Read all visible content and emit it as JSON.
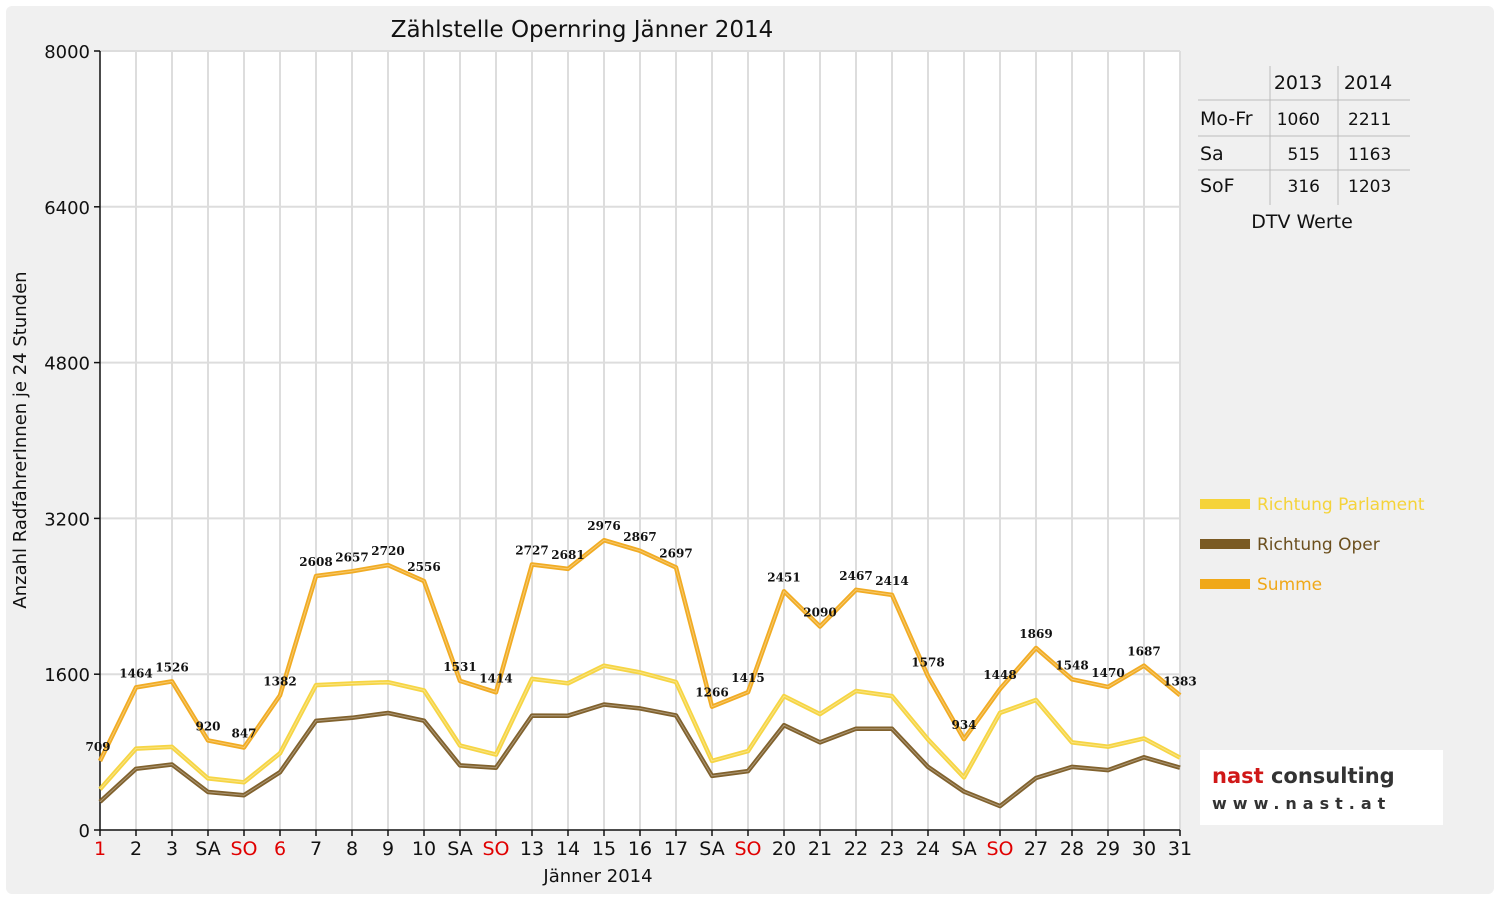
{
  "chart_data": {
    "type": "line",
    "title": "Zählstelle Opernring Jänner 2014",
    "xlabel": "Jänner 2014",
    "ylabel": "Anzahl RadfahrerInnen je 24 Stunden",
    "ylim": [
      0,
      8000
    ],
    "yticks": [
      "0",
      "1600",
      "3200",
      "4800",
      "6400",
      "8000"
    ],
    "grid": true,
    "legend_position": "right",
    "categories": [
      "1",
      "2",
      "3",
      "SA",
      "SO",
      "6",
      "7",
      "8",
      "9",
      "10",
      "SA",
      "SO",
      "13",
      "14",
      "15",
      "16",
      "17",
      "SA",
      "SO",
      "20",
      "21",
      "22",
      "23",
      "24",
      "SA",
      "SO",
      "27",
      "28",
      "29",
      "30",
      "31"
    ],
    "red_categories": [
      0,
      4,
      5,
      11,
      18,
      25
    ],
    "series": [
      {
        "name": "Richtung Parlament",
        "color": "#f5d33a",
        "values": [
          419,
          836,
          853,
          530,
          490,
          788,
          1488,
          1505,
          1518,
          1434,
          868,
          774,
          1552,
          1507,
          1687,
          1618,
          1520,
          710,
          810,
          1375,
          1190,
          1427,
          1375,
          930,
          540,
          1203,
          1335,
          900,
          855,
          940,
          743
        ]
      },
      {
        "name": "Richtung Oper",
        "color": "#7a5a23",
        "values": [
          290,
          628,
          673,
          390,
          357,
          594,
          1120,
          1152,
          1202,
          1122,
          663,
          640,
          1175,
          1174,
          1289,
          1249,
          1177,
          556,
          605,
          1076,
          900,
          1040,
          1039,
          648,
          394,
          245,
          534,
          648,
          615,
          747,
          640
        ]
      },
      {
        "name": "Summe",
        "color": "#f0a818",
        "values": [
          709,
          1464,
          1526,
          920,
          847,
          1382,
          2608,
          2657,
          2720,
          2556,
          1531,
          1414,
          2727,
          2681,
          2976,
          2867,
          2697,
          1266,
          1415,
          2451,
          2090,
          2467,
          2414,
          1578,
          934,
          1448,
          1869,
          1548,
          1470,
          1687,
          1383
        ]
      }
    ],
    "data_labels": [
      709,
      1464,
      1526,
      920,
      847,
      1382,
      2608,
      2657,
      2720,
      2556,
      1531,
      1414,
      2727,
      2681,
      2976,
      2867,
      2697,
      1266,
      1415,
      2451,
      2090,
      2467,
      2414,
      1578,
      934,
      1448,
      1869,
      1548,
      1470,
      1687,
      1383
    ]
  },
  "dtv_table": {
    "caption": "DTV Werte",
    "columns": [
      "",
      "2013",
      "2014"
    ],
    "rows": [
      {
        "label": "Mo-Fr",
        "v2013": "1060",
        "v2014": "2211"
      },
      {
        "label": "Sa",
        "v2013": "515",
        "v2014": "1163"
      },
      {
        "label": "SoF",
        "v2013": "316",
        "v2014": "1203"
      }
    ]
  },
  "logo": {
    "line1_a": "nast",
    "line1_b": " consulting",
    "line2": "www.nast.at"
  }
}
